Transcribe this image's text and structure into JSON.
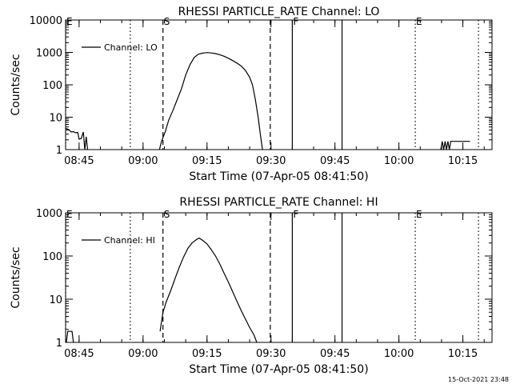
{
  "footer": {
    "timestamp": "15-Oct-2021 23:48"
  },
  "chart_data": [
    {
      "type": "line",
      "title": "RHESSI PARTICLE_RATE Channel: LO",
      "xlabel": "Start Time (07-Apr-05 08:41:50)",
      "ylabel": "Counts/sec",
      "y_scale": "log",
      "ylim": [
        1,
        10000
      ],
      "y_ticks": [
        {
          "value": 1,
          "label": "1"
        },
        {
          "value": 10,
          "label": "10"
        },
        {
          "value": 100,
          "label": "100"
        },
        {
          "value": 1000,
          "label": "1000"
        },
        {
          "value": 10000,
          "label": "10000"
        }
      ],
      "xlim": [
        "08:41:50",
        "10:21:50"
      ],
      "x_ticks": [
        "08:45",
        "09:00",
        "09:15",
        "09:30",
        "09:45",
        "10:00",
        "10:15"
      ],
      "legend": {
        "text": "Channel: LO",
        "position": "top-left"
      },
      "grid": false,
      "markers": [
        {
          "label": "E",
          "time": "08:41:50",
          "style": "dotted"
        },
        {
          "label": "",
          "time": "08:57:00",
          "style": "dotted"
        },
        {
          "label": "S",
          "time": "09:04:40",
          "style": "dashed"
        },
        {
          "label": "",
          "time": "09:29:50",
          "style": "dashed"
        },
        {
          "label": "F",
          "time": "09:35:00",
          "style": "solid"
        },
        {
          "label": "",
          "time": "09:46:40",
          "style": "solid"
        },
        {
          "label": "E",
          "time": "10:03:50",
          "style": "dotted"
        },
        {
          "label": "",
          "time": "10:18:40",
          "style": "dotted"
        }
      ],
      "series": [
        {
          "segments": [
            [
              [
                "08:41:50",
                4.5
              ],
              [
                "08:42:30",
                4.2
              ],
              [
                "08:43:10",
                3.5
              ],
              [
                "08:43:40",
                3.6
              ],
              [
                "08:44:10",
                3.3
              ],
              [
                "08:44:40",
                3.4
              ],
              [
                "08:45:00",
                2.1
              ],
              [
                "08:45:30",
                2.2
              ],
              [
                "08:46:00",
                3.5
              ],
              [
                "08:46:20",
                1.0
              ],
              [
                "08:46:40",
                2.5
              ],
              [
                "08:47:00",
                1.0
              ]
            ],
            [
              [
                "09:03:50",
                1.0
              ],
              [
                "09:04:20",
                1.8
              ],
              [
                "09:05:10",
                3.5
              ],
              [
                "09:06:00",
                8
              ],
              [
                "09:07:00",
                16
              ],
              [
                "09:08:00",
                35
              ],
              [
                "09:09:00",
                75
              ],
              [
                "09:10:00",
                200
              ],
              [
                "09:11:00",
                420
              ],
              [
                "09:12:00",
                700
              ],
              [
                "09:13:00",
                880
              ],
              [
                "09:14:00",
                950
              ],
              [
                "09:15:00",
                990
              ],
              [
                "09:16:00",
                960
              ],
              [
                "09:17:00",
                920
              ],
              [
                "09:18:00",
                850
              ],
              [
                "09:19:00",
                760
              ],
              [
                "09:20:00",
                660
              ],
              [
                "09:21:00",
                560
              ],
              [
                "09:22:00",
                470
              ],
              [
                "09:23:00",
                380
              ],
              [
                "09:24:00",
                280
              ],
              [
                "09:25:00",
                170
              ],
              [
                "09:25:40",
                100
              ],
              [
                "09:26:20",
                35
              ],
              [
                "09:27:00",
                10
              ],
              [
                "09:27:30",
                3
              ],
              [
                "09:28:00",
                1.0
              ]
            ],
            [
              [
                "10:09:50",
                1.0
              ],
              [
                "10:10:10",
                1.8
              ],
              [
                "10:10:30",
                1.0
              ],
              [
                "10:10:50",
                1.8
              ],
              [
                "10:11:10",
                1.0
              ],
              [
                "10:11:30",
                1.8
              ],
              [
                "10:11:50",
                1.0
              ],
              [
                "10:12:10",
                1.8
              ],
              [
                "10:12:30",
                1.8
              ],
              [
                "10:14:00",
                1.8
              ],
              [
                "10:16:40",
                1.8
              ]
            ]
          ]
        }
      ]
    },
    {
      "type": "line",
      "title": "RHESSI PARTICLE_RATE Channel: HI",
      "xlabel": "Start Time (07-Apr-05 08:41:50)",
      "ylabel": "Counts/sec",
      "y_scale": "log",
      "ylim": [
        1,
        1000
      ],
      "y_ticks": [
        {
          "value": 1,
          "label": "1"
        },
        {
          "value": 10,
          "label": "10"
        },
        {
          "value": 100,
          "label": "100"
        },
        {
          "value": 1000,
          "label": "1000"
        }
      ],
      "xlim": [
        "08:41:50",
        "10:21:50"
      ],
      "x_ticks": [
        "08:45",
        "09:00",
        "09:15",
        "09:30",
        "09:45",
        "10:00",
        "10:15"
      ],
      "legend": {
        "text": "Channel: HI",
        "position": "top-left"
      },
      "grid": false,
      "markers": [
        {
          "label": "E",
          "time": "08:41:50",
          "style": "dotted"
        },
        {
          "label": "",
          "time": "08:57:00",
          "style": "dotted"
        },
        {
          "label": "S",
          "time": "09:04:40",
          "style": "dashed"
        },
        {
          "label": "",
          "time": "09:29:50",
          "style": "dashed"
        },
        {
          "label": "F",
          "time": "09:35:00",
          "style": "solid"
        },
        {
          "label": "",
          "time": "09:46:40",
          "style": "solid"
        },
        {
          "label": "E",
          "time": "10:03:50",
          "style": "dotted"
        },
        {
          "label": "",
          "time": "10:18:40",
          "style": "dotted"
        }
      ],
      "series": [
        {
          "segments": [
            [
              [
                "08:42:00",
                1.0
              ],
              [
                "08:42:20",
                1.8
              ],
              [
                "08:43:20",
                1.8
              ],
              [
                "08:43:40",
                1.0
              ]
            ],
            [
              [
                "09:04:00",
                1.8
              ],
              [
                "09:04:40",
                5
              ],
              [
                "09:05:30",
                9
              ],
              [
                "09:06:30",
                16
              ],
              [
                "09:07:30",
                30
              ],
              [
                "09:08:30",
                55
              ],
              [
                "09:09:30",
                95
              ],
              [
                "09:10:30",
                150
              ],
              [
                "09:11:30",
                200
              ],
              [
                "09:12:30",
                240
              ],
              [
                "09:13:10",
                260
              ],
              [
                "09:14:00",
                230
              ],
              [
                "09:15:00",
                190
              ],
              [
                "09:16:00",
                140
              ],
              [
                "09:17:00",
                100
              ],
              [
                "09:18:00",
                65
              ],
              [
                "09:19:00",
                40
              ],
              [
                "09:20:00",
                25
              ],
              [
                "09:21:00",
                15
              ],
              [
                "09:22:00",
                9
              ],
              [
                "09:23:00",
                5.5
              ],
              [
                "09:24:00",
                3.5
              ],
              [
                "09:25:00",
                2.2
              ],
              [
                "09:26:00",
                1.5
              ],
              [
                "09:26:40",
                1.0
              ]
            ]
          ]
        }
      ]
    }
  ]
}
